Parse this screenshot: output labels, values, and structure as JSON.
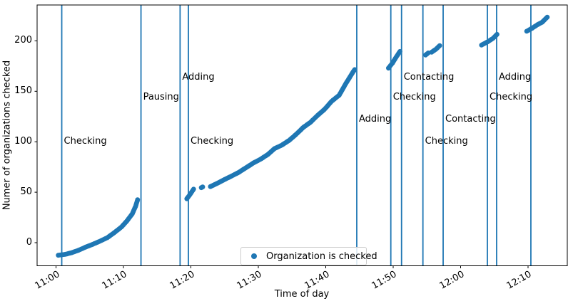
{
  "chart_data": {
    "type": "scatter",
    "title": "",
    "xlabel": "Time of day",
    "ylabel": "Numer of organizations checked",
    "x_unit": "minutes after 11:00",
    "x_ticks": [
      {
        "t": 0,
        "label": "11:00"
      },
      {
        "t": 10,
        "label": "11:10"
      },
      {
        "t": 20,
        "label": "11:20"
      },
      {
        "t": 30,
        "label": "11:30"
      },
      {
        "t": 40,
        "label": "11:40"
      },
      {
        "t": 50,
        "label": "11:50"
      },
      {
        "t": 60,
        "label": "12:00"
      },
      {
        "t": 70,
        "label": "12:10"
      }
    ],
    "y_ticks": [
      0,
      50,
      100,
      150,
      200
    ],
    "xlim_minutes": [
      -2.8,
      75.8
    ],
    "ylim": [
      -23,
      235.5
    ],
    "grid": false,
    "legend_position": "lower center",
    "series_name": "Organization is checked",
    "point_color": "#1f77b4",
    "event_line_color": "#1f77b4",
    "segments": [
      {
        "name": "burst-1",
        "anchors": [
          [
            0.34,
            -12.5
          ],
          [
            1.4,
            -11.5
          ],
          [
            2.3,
            -10
          ],
          [
            3.3,
            -7.6
          ],
          [
            4.4,
            -4.4
          ],
          [
            5.45,
            -1.6
          ],
          [
            6.5,
            1.4
          ],
          [
            7.6,
            4.9
          ],
          [
            8.6,
            9.7
          ],
          [
            9.7,
            15.5
          ],
          [
            10.5,
            21.4
          ],
          [
            11.3,
            28.5
          ],
          [
            11.8,
            36
          ],
          [
            12.1,
            42.5
          ]
        ]
      },
      {
        "name": "burst-2",
        "anchors": [
          [
            19.4,
            43.5
          ],
          [
            19.9,
            48
          ],
          [
            20.4,
            53
          ]
        ]
      },
      {
        "name": "burst-2b",
        "anchors": [
          [
            21.55,
            54.5
          ],
          [
            21.75,
            55.2
          ]
        ]
      },
      {
        "name": "burst-3",
        "anchors": [
          [
            22.9,
            55.6
          ],
          [
            24.0,
            59.1
          ],
          [
            25.0,
            62.6
          ],
          [
            26.1,
            66.2
          ],
          [
            27.1,
            69.7
          ],
          [
            28.2,
            74.4
          ],
          [
            29.3,
            79.1
          ],
          [
            30.3,
            82.6
          ],
          [
            31.4,
            87.3
          ],
          [
            32.4,
            93.2
          ],
          [
            33.5,
            96.7
          ],
          [
            34.6,
            101.5
          ],
          [
            35.6,
            107.3
          ],
          [
            36.7,
            114.4
          ],
          [
            37.7,
            119.1
          ],
          [
            38.8,
            126.2
          ],
          [
            39.8,
            132
          ],
          [
            40.9,
            140.3
          ],
          [
            42.0,
            146.2
          ],
          [
            43.0,
            157.9
          ],
          [
            44.1,
            169.7
          ],
          [
            44.3,
            171.5
          ]
        ]
      },
      {
        "name": "burst-4",
        "anchors": [
          [
            49.3,
            173
          ],
          [
            49.9,
            178
          ],
          [
            50.45,
            184
          ],
          [
            51.0,
            189.5
          ]
        ]
      },
      {
        "name": "burst-5a",
        "anchors": [
          [
            54.8,
            186
          ],
          [
            55.2,
            188
          ]
        ]
      },
      {
        "name": "burst-5b",
        "anchors": [
          [
            55.7,
            188.8
          ],
          [
            56.3,
            191.5
          ],
          [
            56.9,
            195.3
          ]
        ]
      },
      {
        "name": "burst-6",
        "anchors": [
          [
            63.1,
            195.8
          ],
          [
            64.0,
            199
          ],
          [
            64.8,
            202.5
          ],
          [
            65.4,
            206.4
          ]
        ]
      },
      {
        "name": "burst-7",
        "anchors": [
          [
            69.8,
            209.5
          ],
          [
            70.6,
            212.5
          ],
          [
            71.4,
            216
          ],
          [
            72.1,
            218.5
          ],
          [
            72.85,
            223.5
          ]
        ]
      }
    ],
    "events": [
      {
        "t": 0.85,
        "label": "Checking",
        "label_v": 100
      },
      {
        "t": 12.6,
        "label": "Pausing",
        "label_v": 144
      },
      {
        "t": 18.4,
        "label": "Adding",
        "label_v": 163.5
      },
      {
        "t": 19.63,
        "label": "Checking",
        "label_v": 100
      },
      {
        "t": 44.6,
        "label": "Adding",
        "label_v": 122
      },
      {
        "t": 49.65,
        "label": "Checking",
        "label_v": 144
      },
      {
        "t": 51.24,
        "label": "Contacting",
        "label_v": 163.5
      },
      {
        "t": 54.41,
        "label": "Checking",
        "label_v": 100
      },
      {
        "t": 57.41,
        "label": "Contacting",
        "label_v": 122
      },
      {
        "t": 63.97,
        "label": "Checking",
        "label_v": 144
      },
      {
        "t": 65.34,
        "label": "Adding",
        "label_v": 163.5
      },
      {
        "t": 70.42,
        "label": "",
        "label_v": null
      }
    ]
  }
}
